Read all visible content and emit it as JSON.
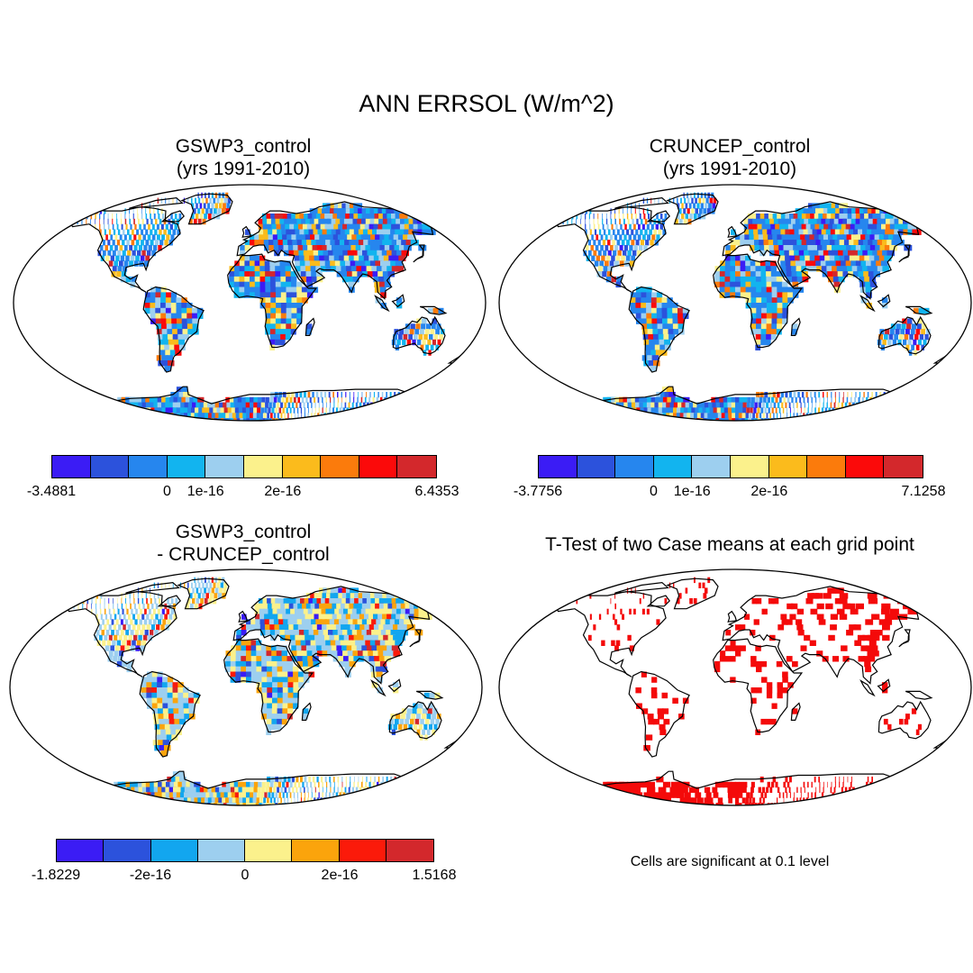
{
  "title": "ANN ERRSOL (W/m^2)",
  "panels": [
    {
      "id": "gswp3",
      "title_line1": "GSWP3_control",
      "title_line2": "(yrs 1991-2010)",
      "kind": "field",
      "seed": 11,
      "bias": 0.55
    },
    {
      "id": "cruncep",
      "title_line1": "CRUNCEP_control",
      "title_line2": "(yrs 1991-2010)",
      "kind": "field",
      "seed": 29,
      "bias": 0.5
    },
    {
      "id": "diff",
      "title_line1": "GSWP3_control",
      "title_line2": "- CRUNCEP_control",
      "kind": "diff",
      "seed": 47,
      "bias": 0.5
    },
    {
      "id": "ttest",
      "title_line1": "T-Test of two Case means at each grid point",
      "title_line2": "",
      "kind": "sig",
      "seed": 83,
      "bias": 0.3
    }
  ],
  "colorbars": [
    {
      "colors": [
        "#3b1cf5",
        "#2c52dc",
        "#2686ee",
        "#12b4ef",
        "#9dcfef",
        "#fbf18c",
        "#fbbb1c",
        "#fb7b0c",
        "#fb0a0a",
        "#d3282c"
      ],
      "labels": [
        "-3.4881",
        "0",
        "1e-16",
        "2e-16",
        "6.4353"
      ],
      "label_boundaries": [
        0,
        3,
        4,
        6,
        10
      ]
    },
    {
      "colors": [
        "#3b1cf5",
        "#2c52dc",
        "#2686ee",
        "#12b4ef",
        "#9dcfef",
        "#fbf18c",
        "#fbbb1c",
        "#fb7b0c",
        "#fb0a0a",
        "#d3282c"
      ],
      "labels": [
        "-3.7756",
        "0",
        "1e-16",
        "2e-16",
        "7.1258"
      ],
      "label_boundaries": [
        0,
        3,
        4,
        6,
        10
      ]
    },
    {
      "colors": [
        "#3b1cf5",
        "#2c52dc",
        "#12a6ef",
        "#9dcfef",
        "#fbf18c",
        "#fba40c",
        "#fb1a0a",
        "#d3282c"
      ],
      "labels": [
        "-1.8229",
        "-2e-16",
        "0",
        "2e-16",
        "1.5168"
      ],
      "label_boundaries": [
        0,
        2,
        4,
        6,
        8
      ]
    }
  ],
  "significance_color": "#f40a0a",
  "footnote": "Cells are significant at 0.1 level"
}
